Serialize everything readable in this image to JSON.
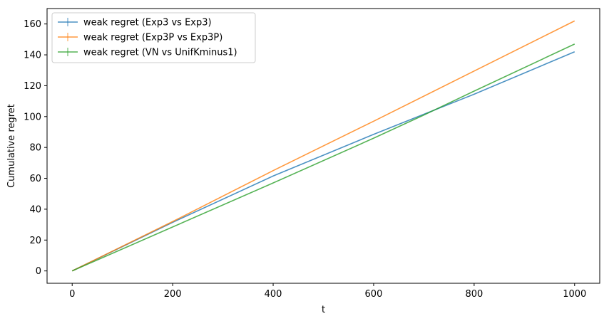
{
  "chart_data": {
    "type": "line",
    "title": "",
    "xlabel": "t",
    "ylabel": "Cumulative regret",
    "xlim": [
      -50,
      1050
    ],
    "ylim": [
      -8,
      170
    ],
    "xticks": [
      0,
      200,
      400,
      600,
      800,
      1000
    ],
    "yticks": [
      0,
      20,
      40,
      60,
      80,
      100,
      120,
      140,
      160
    ],
    "grid": false,
    "legend_position": "top-left",
    "series": [
      {
        "name": "weak regret (Exp3 vs Exp3)",
        "color": "#1f77b4",
        "x": [
          0,
          200,
          400,
          600,
          700,
          800,
          1000
        ],
        "y": [
          0,
          31.5,
          61.5,
          88.5,
          101.5,
          114.5,
          142
        ]
      },
      {
        "name": "weak regret (Exp3P vs Exp3P)",
        "color": "#ff7f0e",
        "x": [
          0,
          200,
          400,
          600,
          800,
          1000
        ],
        "y": [
          0,
          32,
          65,
          97,
          129.5,
          162
        ]
      },
      {
        "name": "weak regret (VN vs UnifKminus1)",
        "color": "#2ca02c",
        "x": [
          0,
          200,
          400,
          600,
          700,
          800,
          1000
        ],
        "y": [
          0,
          28.5,
          57,
          86,
          101,
          116.5,
          147
        ]
      }
    ]
  }
}
